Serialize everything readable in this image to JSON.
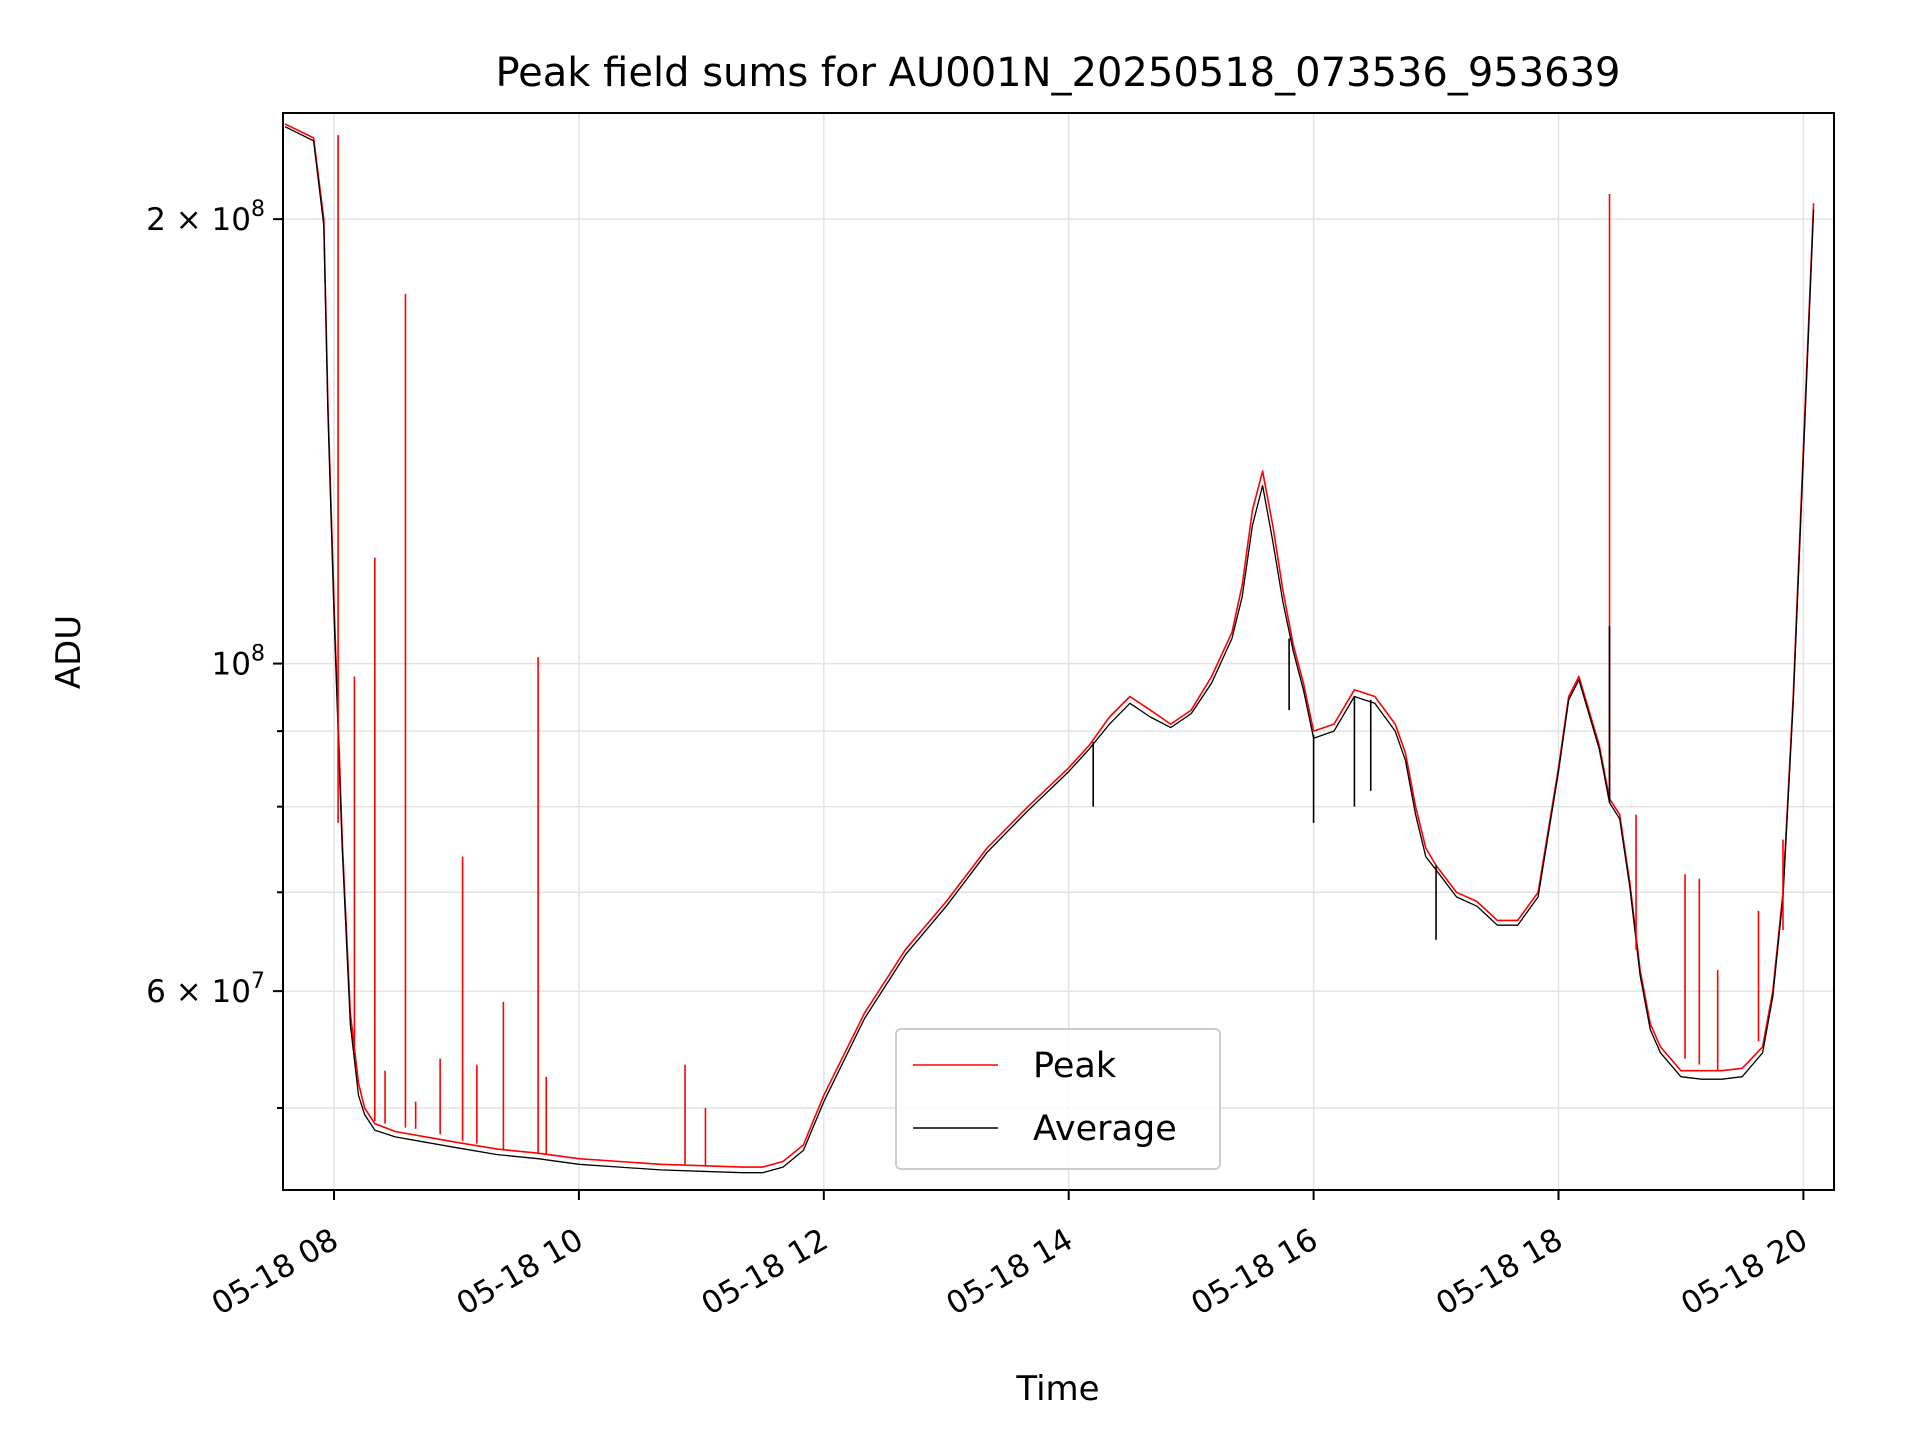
{
  "chart_data": {
    "type": "line",
    "title": "Peak field sums for AU001N_20250518_073536_953639",
    "xlabel": "Time",
    "ylabel": "ADU",
    "yscale": "log",
    "xlim": [
      "2025-05-18 07:35",
      "2025-05-18 20:15"
    ],
    "ylim": [
      44000000,
      236000000
    ],
    "x_ticks": [
      "05-18 08",
      "05-18 10",
      "05-18 12",
      "05-18 14",
      "05-18 16",
      "05-18 18",
      "05-18 20"
    ],
    "y_ticks": [
      {
        "value": 60000000,
        "mantissa": "6",
        "exponent": "7"
      },
      {
        "value": 100000000,
        "mantissa": "",
        "exponent": "8"
      },
      {
        "value": 200000000,
        "mantissa": "2",
        "exponent": "8"
      }
    ],
    "grid": true,
    "legend_position": "lower-center",
    "series": [
      {
        "name": "Peak",
        "color": "#ff0000",
        "x": [
          "07:36",
          "07:50",
          "07:55",
          "07:57",
          "08:00",
          "08:04",
          "08:08",
          "08:12",
          "08:15",
          "08:20",
          "08:30",
          "08:45",
          "09:00",
          "09:20",
          "09:40",
          "10:00",
          "10:20",
          "10:40",
          "11:00",
          "11:20",
          "11:30",
          "11:40",
          "11:50",
          "12:00",
          "12:20",
          "12:40",
          "13:00",
          "13:20",
          "13:40",
          "14:00",
          "14:10",
          "14:20",
          "14:30",
          "14:40",
          "14:50",
          "15:00",
          "15:10",
          "15:20",
          "15:25",
          "15:30",
          "15:35",
          "15:40",
          "15:45",
          "15:50",
          "15:55",
          "16:00",
          "16:10",
          "16:20",
          "16:30",
          "16:40",
          "16:45",
          "16:50",
          "16:55",
          "17:00",
          "17:10",
          "17:20",
          "17:25",
          "17:30",
          "17:35",
          "17:40",
          "17:50",
          "18:00",
          "18:05",
          "18:10",
          "18:20",
          "18:25",
          "18:30",
          "18:35",
          "18:40",
          "18:45",
          "18:50",
          "19:00",
          "19:10",
          "19:20",
          "19:30",
          "19:40",
          "19:45",
          "19:50",
          "19:55",
          "20:00",
          "20:05"
        ],
        "y": [
          232000000,
          227000000,
          200000000,
          150000000,
          110000000,
          76000000,
          58000000,
          52000000,
          50000000,
          48800000,
          48200000,
          47800000,
          47400000,
          46900000,
          46600000,
          46200000,
          46000000,
          45800000,
          45700000,
          45600000,
          45600000,
          46000000,
          47200000,
          51000000,
          58000000,
          64000000,
          69000000,
          75000000,
          80000000,
          85000000,
          88000000,
          92000000,
          95000000,
          93000000,
          91000000,
          93000000,
          98000000,
          105000000,
          113000000,
          127000000,
          135000000,
          124000000,
          112000000,
          103000000,
          97000000,
          90000000,
          91000000,
          96000000,
          95000000,
          91000000,
          87000000,
          80000000,
          75000000,
          73000000,
          70000000,
          69000000,
          68000000,
          67000000,
          67000000,
          67000000,
          70000000,
          85000000,
          95000000,
          98000000,
          88000000,
          81000000,
          79000000,
          71000000,
          62000000,
          57000000,
          55000000,
          53000000,
          53000000,
          53000000,
          53200000,
          55000000,
          60000000,
          70000000,
          95000000,
          140000000,
          205000000
        ]
      },
      {
        "name": "Average",
        "color": "#000000",
        "x": [
          "07:36",
          "07:50",
          "07:55",
          "07:57",
          "08:00",
          "08:04",
          "08:08",
          "08:12",
          "08:15",
          "08:20",
          "08:30",
          "08:45",
          "09:00",
          "09:20",
          "09:40",
          "10:00",
          "10:20",
          "10:40",
          "11:00",
          "11:20",
          "11:30",
          "11:40",
          "11:50",
          "12:00",
          "12:20",
          "12:40",
          "13:00",
          "13:20",
          "13:40",
          "14:00",
          "14:10",
          "14:20",
          "14:30",
          "14:40",
          "14:50",
          "15:00",
          "15:10",
          "15:20",
          "15:25",
          "15:30",
          "15:35",
          "15:40",
          "15:45",
          "15:50",
          "15:55",
          "16:00",
          "16:10",
          "16:20",
          "16:30",
          "16:40",
          "16:45",
          "16:50",
          "16:55",
          "17:00",
          "17:10",
          "17:20",
          "17:25",
          "17:30",
          "17:35",
          "17:40",
          "17:50",
          "18:00",
          "18:05",
          "18:10",
          "18:20",
          "18:25",
          "18:30",
          "18:35",
          "18:40",
          "18:45",
          "18:50",
          "19:00",
          "19:10",
          "19:20",
          "19:30",
          "19:40",
          "19:45",
          "19:50",
          "19:55",
          "20:00",
          "20:05"
        ],
        "y": [
          231000000,
          226000000,
          198000000,
          148000000,
          108000000,
          75000000,
          57000000,
          51000000,
          49500000,
          48300000,
          47800000,
          47400000,
          47000000,
          46500000,
          46200000,
          45800000,
          45600000,
          45400000,
          45300000,
          45200000,
          45200000,
          45600000,
          46800000,
          50500000,
          57500000,
          63500000,
          68500000,
          74500000,
          79500000,
          84500000,
          87500000,
          91000000,
          94000000,
          92000000,
          90500000,
          92500000,
          97000000,
          104000000,
          111000000,
          124000000,
          132000000,
          121000000,
          110000000,
          102000000,
          96000000,
          89000000,
          90000000,
          95000000,
          94000000,
          90000000,
          86000000,
          79000000,
          74000000,
          72500000,
          69500000,
          68500000,
          67500000,
          66500000,
          66500000,
          66500000,
          69500000,
          84500000,
          94500000,
          97500000,
          87500000,
          80500000,
          78500000,
          70500000,
          61500000,
          56500000,
          54500000,
          52500000,
          52300000,
          52300000,
          52500000,
          54500000,
          59500000,
          69500000,
          94000000,
          138000000,
          203000000
        ]
      }
    ],
    "spikes": [
      {
        "series": "Peak",
        "x": "08:02",
        "base": 78000000,
        "top": 228000000
      },
      {
        "series": "Peak",
        "x": "08:10",
        "base": 55000000,
        "top": 98000000
      },
      {
        "series": "Peak",
        "x": "08:20",
        "base": 49000000,
        "top": 118000000
      },
      {
        "series": "Peak",
        "x": "08:25",
        "base": 48800000,
        "top": 53000000
      },
      {
        "series": "Peak",
        "x": "08:35",
        "base": 48500000,
        "top": 178000000
      },
      {
        "series": "Peak",
        "x": "08:40",
        "base": 48400000,
        "top": 50500000
      },
      {
        "series": "Peak",
        "x": "08:52",
        "base": 48000000,
        "top": 54000000
      },
      {
        "series": "Peak",
        "x": "09:03",
        "base": 47500000,
        "top": 74000000
      },
      {
        "series": "Peak",
        "x": "09:10",
        "base": 47300000,
        "top": 53500000
      },
      {
        "series": "Peak",
        "x": "09:23",
        "base": 46900000,
        "top": 59000000
      },
      {
        "series": "Peak",
        "x": "09:40",
        "base": 46600000,
        "top": 101000000
      },
      {
        "series": "Peak",
        "x": "09:44",
        "base": 46500000,
        "top": 52500000
      },
      {
        "series": "Peak",
        "x": "10:52",
        "base": 45800000,
        "top": 53500000
      },
      {
        "series": "Peak",
        "x": "11:02",
        "base": 45700000,
        "top": 50000000
      },
      {
        "series": "Peak",
        "x": "18:25",
        "base": 81000000,
        "top": 208000000
      },
      {
        "series": "Average",
        "x": "18:25",
        "base": 80500000,
        "top": 106000000
      },
      {
        "series": "Peak",
        "x": "18:38",
        "base": 64000000,
        "top": 79000000
      },
      {
        "series": "Peak",
        "x": "19:02",
        "base": 54000000,
        "top": 72000000
      },
      {
        "series": "Peak",
        "x": "19:09",
        "base": 53500000,
        "top": 71500000
      },
      {
        "series": "Peak",
        "x": "19:18",
        "base": 53000000,
        "top": 62000000
      },
      {
        "series": "Peak",
        "x": "19:38",
        "base": 55500000,
        "top": 68000000
      },
      {
        "series": "Peak",
        "x": "19:50",
        "base": 66000000,
        "top": 76000000
      }
    ],
    "dips": [
      {
        "series": "Average",
        "x": "14:12",
        "base": 88500000,
        "bottom": 80000000
      },
      {
        "series": "Average",
        "x": "15:48",
        "base": 104000000,
        "bottom": 93000000
      },
      {
        "series": "Average",
        "x": "16:00",
        "base": 89500000,
        "bottom": 78000000
      },
      {
        "series": "Average",
        "x": "16:20",
        "base": 95000000,
        "bottom": 80000000
      },
      {
        "series": "Average",
        "x": "16:28",
        "base": 94500000,
        "bottom": 82000000
      },
      {
        "series": "Average",
        "x": "17:00",
        "base": 73000000,
        "bottom": 65000000
      }
    ]
  }
}
